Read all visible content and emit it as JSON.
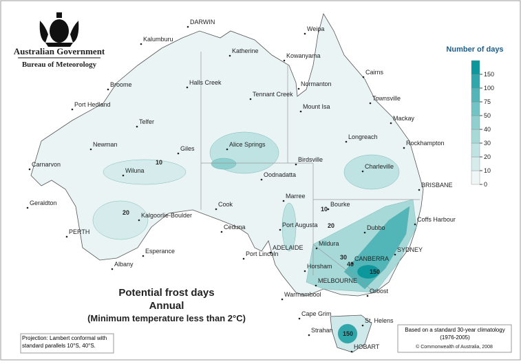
{
  "header": {
    "agency": "Australian Government",
    "bureau": "Bureau of Meteorology"
  },
  "title": {
    "line1": "Potential frost days",
    "line2": "Annual",
    "line3": "(Minimum temperature less than 2°C)"
  },
  "legend": {
    "title": "Number of days",
    "ticks": [
      0,
      10,
      20,
      30,
      40,
      50,
      75,
      100,
      150
    ],
    "colors": [
      "#eef6f6",
      "#d6ecec",
      "#bfe3e3",
      "#a8d9d9",
      "#90cfd0",
      "#72c3c5",
      "#52b6b9",
      "#2fa7ab",
      "#0b979c"
    ]
  },
  "places": [
    "DARWIN",
    "Kalumburu",
    "Weipa",
    "Katherine",
    "Kowanyama",
    "Cairns",
    "Broome",
    "Halls Creek",
    "Normanton",
    "Tennant Creek",
    "Townsville",
    "Port Hedland",
    "Mount Isa",
    "Mackay",
    "Telfer",
    "Longreach",
    "Rockhampton",
    "Newman",
    "Giles",
    "Alice Springs",
    "Birdsville",
    "Carnarvon",
    "Wiluna",
    "Charleville",
    "Oodnadatta",
    "BRISBANE",
    "Geraldton",
    "Marree",
    "Bourke",
    "Coffs Harbour",
    "Kalgoorlie-Boulder",
    "Cook",
    "Ceduna",
    "Port Augusta",
    "Dubbo",
    "PERTH",
    "ADELAIDE",
    "Mildura",
    "SYDNEY",
    "Esperance",
    "Port Lincoln",
    "CANBERRA",
    "Albany",
    "Horsham",
    "MELBOURNE",
    "Orbost",
    "Warrnambool",
    "Cape Grim",
    "St. Helens",
    "Strahan",
    "HOBART"
  ],
  "contour_labels": [
    "10",
    "20",
    "10",
    "20",
    "30",
    "40",
    "150",
    "150"
  ],
  "notes": {
    "projection": "Projection: Lambert conformal with standard parallels 10°S, 40°S.",
    "basis": "Based on a standard 30-year climatology (1976-2005)",
    "copyright": "© Commonwealth of Australia, 2008"
  }
}
